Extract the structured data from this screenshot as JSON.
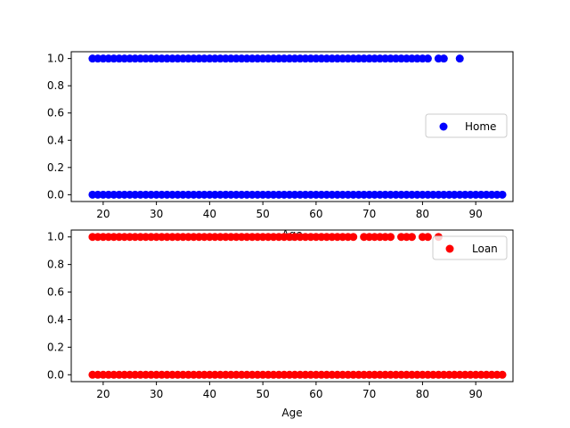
{
  "chart_data": [
    {
      "type": "scatter",
      "xlabel": "Age",
      "ylabel": "",
      "xlim": [
        14,
        97
      ],
      "ylim": [
        -0.05,
        1.05
      ],
      "xticks": [
        20,
        30,
        40,
        50,
        60,
        70,
        80,
        90
      ],
      "yticks": [
        0.0,
        0.2,
        0.4,
        0.6,
        0.8,
        1.0
      ],
      "legend_position": "center-right",
      "series": [
        {
          "name": "Home",
          "color": "#0000ff",
          "points_y1_x": [
            18,
            19,
            20,
            21,
            22,
            23,
            24,
            25,
            26,
            27,
            28,
            29,
            30,
            31,
            32,
            33,
            34,
            35,
            36,
            37,
            38,
            39,
            40,
            41,
            42,
            43,
            44,
            45,
            46,
            47,
            48,
            49,
            50,
            51,
            52,
            53,
            54,
            55,
            56,
            57,
            58,
            59,
            60,
            61,
            62,
            63,
            64,
            65,
            66,
            67,
            68,
            69,
            70,
            71,
            72,
            73,
            74,
            75,
            76,
            77,
            78,
            79,
            80,
            81,
            83,
            84,
            87
          ],
          "points_y0_x": [
            18,
            19,
            20,
            21,
            22,
            23,
            24,
            25,
            26,
            27,
            28,
            29,
            30,
            31,
            32,
            33,
            34,
            35,
            36,
            37,
            38,
            39,
            40,
            41,
            42,
            43,
            44,
            45,
            46,
            47,
            48,
            49,
            50,
            51,
            52,
            53,
            54,
            55,
            56,
            57,
            58,
            59,
            60,
            61,
            62,
            63,
            64,
            65,
            66,
            67,
            68,
            69,
            70,
            71,
            72,
            73,
            74,
            75,
            76,
            77,
            78,
            79,
            80,
            81,
            82,
            83,
            84,
            85,
            86,
            87,
            88,
            89,
            90,
            91,
            92,
            93,
            94,
            95
          ]
        }
      ]
    },
    {
      "type": "scatter",
      "xlabel": "Age",
      "ylabel": "",
      "xlim": [
        14,
        97
      ],
      "ylim": [
        -0.05,
        1.05
      ],
      "xticks": [
        20,
        30,
        40,
        50,
        60,
        70,
        80,
        90
      ],
      "yticks": [
        0.0,
        0.2,
        0.4,
        0.6,
        0.8,
        1.0
      ],
      "legend_position": "upper-right",
      "series": [
        {
          "name": "Loan",
          "color": "#ff0000",
          "points_y1_x": [
            18,
            19,
            20,
            21,
            22,
            23,
            24,
            25,
            26,
            27,
            28,
            29,
            30,
            31,
            32,
            33,
            34,
            35,
            36,
            37,
            38,
            39,
            40,
            41,
            42,
            43,
            44,
            45,
            46,
            47,
            48,
            49,
            50,
            51,
            52,
            53,
            54,
            55,
            56,
            57,
            58,
            59,
            60,
            61,
            62,
            63,
            64,
            65,
            66,
            67,
            69,
            70,
            71,
            72,
            73,
            74,
            76,
            77,
            78,
            80,
            81,
            83
          ],
          "points_y0_x": [
            18,
            19,
            20,
            21,
            22,
            23,
            24,
            25,
            26,
            27,
            28,
            29,
            30,
            31,
            32,
            33,
            34,
            35,
            36,
            37,
            38,
            39,
            40,
            41,
            42,
            43,
            44,
            45,
            46,
            47,
            48,
            49,
            50,
            51,
            52,
            53,
            54,
            55,
            56,
            57,
            58,
            59,
            60,
            61,
            62,
            63,
            64,
            65,
            66,
            67,
            68,
            69,
            70,
            71,
            72,
            73,
            74,
            75,
            76,
            77,
            78,
            79,
            80,
            81,
            82,
            83,
            84,
            85,
            86,
            87,
            88,
            89,
            90,
            91,
            92,
            93,
            94,
            95
          ]
        }
      ]
    }
  ]
}
